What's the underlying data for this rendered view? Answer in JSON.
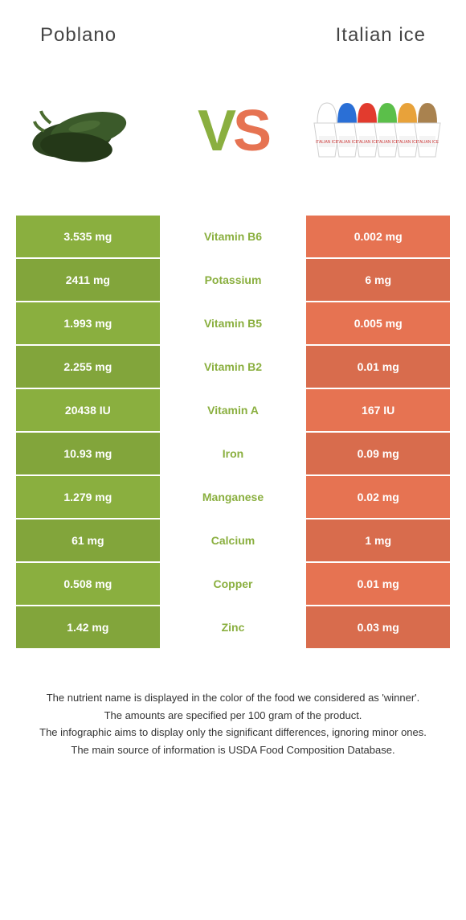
{
  "header": {
    "left_title": "Poblano",
    "right_title": "Italian ice"
  },
  "vs": {
    "v": "V",
    "s": "S"
  },
  "colors": {
    "left_bg": "#8aaf3f",
    "right_bg": "#e67352",
    "mid_text_winner_left": "#8aaf3f",
    "mid_text_winner_right": "#e67352",
    "row_alt_darken": 0.06
  },
  "table": {
    "rows": [
      {
        "left": "3.535 mg",
        "label": "Vitamin B6",
        "right": "0.002 mg",
        "winner": "left"
      },
      {
        "left": "2411 mg",
        "label": "Potassium",
        "right": "6 mg",
        "winner": "left"
      },
      {
        "left": "1.993 mg",
        "label": "Vitamin B5",
        "right": "0.005 mg",
        "winner": "left"
      },
      {
        "left": "2.255 mg",
        "label": "Vitamin B2",
        "right": "0.01 mg",
        "winner": "left"
      },
      {
        "left": "20438 IU",
        "label": "Vitamin A",
        "right": "167 IU",
        "winner": "left"
      },
      {
        "left": "10.93 mg",
        "label": "Iron",
        "right": "0.09 mg",
        "winner": "left"
      },
      {
        "left": "1.279 mg",
        "label": "Manganese",
        "right": "0.02 mg",
        "winner": "left"
      },
      {
        "left": "61 mg",
        "label": "Calcium",
        "right": "1 mg",
        "winner": "left"
      },
      {
        "left": "0.508 mg",
        "label": "Copper",
        "right": "0.01 mg",
        "winner": "left"
      },
      {
        "left": "1.42 mg",
        "label": "Zinc",
        "right": "0.03 mg",
        "winner": "left"
      }
    ]
  },
  "footnotes": [
    "The nutrient name is displayed in the color of the food we considered as 'winner'.",
    "The amounts are specified per 100 gram of the product.",
    "The infographic aims to display only the significant differences, ignoring minor ones.",
    "The main source of information is USDA Food Composition Database."
  ],
  "ice_colors": [
    "#ffffff",
    "#2a6fd6",
    "#e23b2e",
    "#5bbf4a",
    "#e8a23a",
    "#a9824f"
  ]
}
